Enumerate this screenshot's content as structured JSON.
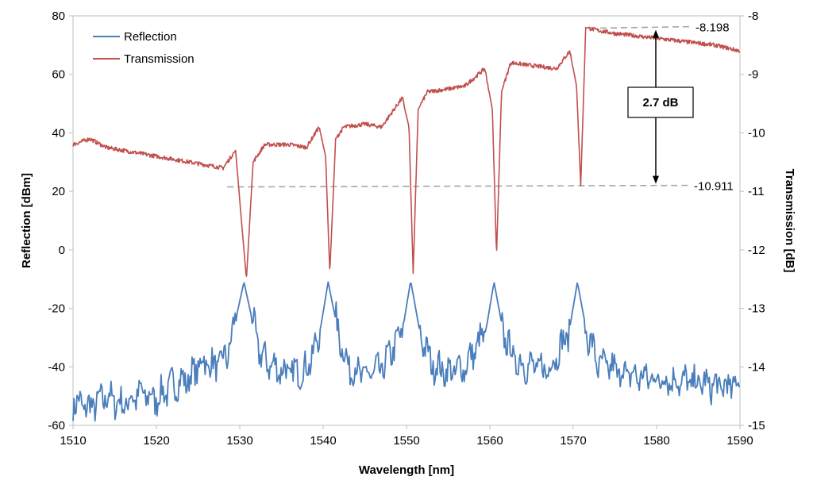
{
  "chart_data": {
    "type": "line",
    "x": {
      "label": "Wavelength [nm]",
      "lim": [
        1510,
        1590
      ],
      "ticks": [
        "1510",
        "1520",
        "1530",
        "1540",
        "1550",
        "1560",
        "1570",
        "1580",
        "1590"
      ]
    },
    "y_left": {
      "label": "Reflection [dBm]",
      "lim": [
        -60,
        80
      ],
      "ticks": [
        "-60",
        "-40",
        "-20",
        "0",
        "20",
        "40",
        "60",
        "80"
      ]
    },
    "y_right": {
      "label": "Transmission [dB]",
      "lim": [
        -15,
        -8
      ],
      "ticks": [
        "-15",
        "-14",
        "-13",
        "-12",
        "-11",
        "-10",
        "-9",
        "-8"
      ]
    },
    "legend": {
      "placement": "top-left",
      "entries": [
        "Reflection",
        "Transmission"
      ]
    },
    "series": [
      {
        "name": "Reflection",
        "axis": "left",
        "color": "#4a7ebb",
        "x": [
          1510,
          1512,
          1514,
          1516,
          1518,
          1520,
          1522,
          1524,
          1525.5,
          1527,
          1528.5,
          1529.5,
          1530.5,
          1531.5,
          1532.5,
          1534,
          1536,
          1538,
          1539.5,
          1540.6,
          1541.8,
          1543,
          1545,
          1547,
          1549.5,
          1550.5,
          1551.6,
          1553,
          1555,
          1557,
          1559.5,
          1560.5,
          1561.6,
          1563,
          1565,
          1567,
          1569.5,
          1570.5,
          1571.6,
          1573,
          1575,
          1577,
          1580,
          1583,
          1586,
          1588,
          1590
        ],
        "y": [
          -52,
          -54,
          -50,
          -53,
          -49,
          -51,
          -46,
          -44,
          -38,
          -40,
          -36,
          -24,
          -11,
          -24,
          -36,
          -40,
          -42,
          -41,
          -30,
          -11,
          -28,
          -40,
          -43,
          -41,
          -28,
          -10.5,
          -28,
          -39,
          -42,
          -40,
          -28,
          -11,
          -28,
          -38,
          -40,
          -41,
          -28,
          -11,
          -28,
          -39,
          -41,
          -43,
          -44,
          -45,
          -46,
          -47,
          -46
        ]
      },
      {
        "name": "Transmission",
        "axis": "right",
        "color": "#c0504d",
        "x": [
          1510,
          1512,
          1514,
          1516,
          1518,
          1520,
          1522,
          1524,
          1526,
          1528,
          1529.5,
          1530.2,
          1530.8,
          1531.6,
          1533,
          1536,
          1538,
          1539.5,
          1540.3,
          1540.8,
          1541.5,
          1542.5,
          1545,
          1547,
          1549.5,
          1550.3,
          1550.8,
          1551.4,
          1552.5,
          1555,
          1557,
          1559.4,
          1560.3,
          1560.8,
          1561.4,
          1562.5,
          1565,
          1568,
          1569.6,
          1570.4,
          1570.9,
          1571.5,
          1573,
          1575,
          1578,
          1581,
          1584,
          1587,
          1590
        ],
        "y": [
          -10.2,
          -10.1,
          -10.25,
          -10.3,
          -10.35,
          -10.4,
          -10.45,
          -10.5,
          -10.55,
          -10.6,
          -10.3,
          -11.5,
          -12.5,
          -10.5,
          -10.2,
          -10.2,
          -10.25,
          -9.9,
          -10.4,
          -12.4,
          -10.1,
          -9.9,
          -9.85,
          -9.9,
          -9.4,
          -9.9,
          -12.4,
          -9.6,
          -9.3,
          -9.25,
          -9.2,
          -8.9,
          -9.6,
          -12.1,
          -9.3,
          -8.8,
          -8.85,
          -8.9,
          -8.6,
          -9.2,
          -10.9,
          -8.2,
          -8.25,
          -8.3,
          -8.35,
          -8.4,
          -8.45,
          -8.5,
          -8.6
        ]
      }
    ],
    "reference_lines": [
      {
        "label": "-8.198",
        "value": -8.198,
        "axis": "right"
      },
      {
        "label": "-10.911",
        "value": -10.911,
        "axis": "right"
      }
    ],
    "annotation": {
      "text": "2.7 dB",
      "from": -10.911,
      "to": -8.198,
      "x": 1580,
      "axis": "right"
    }
  }
}
